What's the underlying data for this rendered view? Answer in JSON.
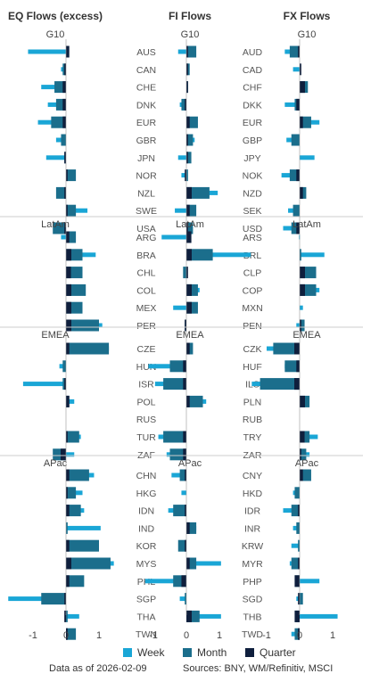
{
  "colors": {
    "week": "#1AA6D6",
    "month": "#1B6E8C",
    "quarter": "#0F1F3D",
    "rule": "#cccccc",
    "axis": "#333333"
  },
  "footer": {
    "date": "Data as of 2026-02-09",
    "sources": "Sources:  BNY, WM/Refinitiv, MSCI"
  },
  "legend": [
    {
      "key": "week",
      "label": "Week"
    },
    {
      "key": "month",
      "label": "Month"
    },
    {
      "key": "quarter",
      "label": "Quarter"
    }
  ],
  "chart_data": {
    "type": "bar",
    "orientation": "horizontal",
    "xlim": [
      -1.5,
      1.5
    ],
    "x_ticks": [
      -1,
      0,
      1
    ],
    "x_tick_labels": [
      "-1",
      "0",
      "1"
    ],
    "series_order": [
      "quarter",
      "month",
      "week"
    ],
    "panels": [
      {
        "title": "EQ Flows (excess)",
        "labels_key": "eq_labels",
        "values_key": "eq"
      },
      {
        "title": "FI Flows",
        "labels_key": "fi_labels",
        "values_key": "fi"
      },
      {
        "title": "FX Flows",
        "labels_key": "fx_labels",
        "values_key": "fx"
      }
    ],
    "regions": [
      {
        "name": "G10",
        "eq_labels": [
          "AUS",
          "CAN",
          "CHE",
          "DNK",
          "EUR",
          "GBR",
          "JPN",
          "NOR",
          "NZL",
          "SWE",
          "USA"
        ],
        "fi_labels": [
          "AUS",
          "CAN",
          "CHE",
          "DNK",
          "EUR",
          "GBR",
          "JPN",
          "NOR",
          "NZL",
          "SWE",
          "USA"
        ],
        "fx_labels": [
          "AUD",
          "CAD",
          "CHF",
          "DKK",
          "EUR",
          "GBP",
          "JPY",
          "NOK",
          "NZD",
          "SEK",
          "USD"
        ],
        "eq": {
          "quarter": [
            0.1,
            -0.05,
            -0.1,
            -0.1,
            -0.1,
            0,
            -0.05,
            0.05,
            -0.05,
            0.05,
            -0.05
          ],
          "month": [
            0.05,
            -0.1,
            -0.35,
            -0.3,
            -0.45,
            -0.15,
            -0.05,
            0.3,
            -0.3,
            0.3,
            -0.4
          ],
          "week": [
            -1.15,
            -0.15,
            -0.75,
            -0.55,
            -0.85,
            -0.3,
            -0.6,
            0.05,
            0.0,
            0.65,
            -0.2
          ]
        },
        "fi": {
          "quarter": [
            0.05,
            0.05,
            0.05,
            -0.05,
            0.1,
            0.05,
            0.05,
            -0.05,
            0.35,
            0.1,
            0.05
          ],
          "month": [
            0.3,
            0.1,
            0.05,
            -0.15,
            0.35,
            0.2,
            0.15,
            0.05,
            0.7,
            0.3,
            0.2
          ],
          "week": [
            -0.25,
            0.05,
            0.05,
            -0.2,
            0.15,
            0.25,
            -0.25,
            -0.15,
            0.95,
            -0.35,
            0.1
          ]
        },
        "fx": {
          "quarter": [
            -0.05,
            0.05,
            0.3,
            -0.1,
            0.1,
            0.0,
            0.0,
            -0.1,
            0.1,
            0.0,
            -0.1
          ],
          "month": [
            -0.3,
            0.0,
            0.25,
            -0.15,
            0.35,
            -0.25,
            0.0,
            -0.3,
            0.2,
            -0.2,
            -0.25
          ],
          "week": [
            -0.45,
            -0.2,
            0.1,
            -0.45,
            0.6,
            -0.4,
            0.45,
            -0.55,
            0.1,
            -0.35,
            -0.5
          ]
        }
      },
      {
        "name": "LatAm",
        "eq_labels": [
          "ARG",
          "BRA",
          "CHL",
          "COL",
          "MEX",
          "PER"
        ],
        "fi_labels": [
          "ARG",
          "BRA",
          "CHL",
          "COL",
          "MEX",
          "PER"
        ],
        "fx_labels": [
          "ARS",
          "BRL",
          "CLP",
          "COP",
          "MXN",
          "PEN"
        ],
        "eq": {
          "quarter": [
            0.1,
            0.2,
            0.15,
            0.3,
            0.2,
            0.6
          ],
          "month": [
            0.3,
            0.5,
            0.5,
            0.6,
            0.5,
            1.0
          ],
          "week": [
            -0.15,
            0.9,
            0.45,
            0.2,
            0.45,
            1.1
          ]
        },
        "fi": {
          "quarter": [
            0.15,
            0.3,
            0.05,
            0.2,
            0.35,
            -0.05
          ],
          "month": [
            0.15,
            0.8,
            -0.1,
            0.35,
            0.35,
            -0.05
          ],
          "week": [
            -0.75,
            1.95,
            0.0,
            0.4,
            -0.4,
            -0.05
          ]
        },
        "fx": {
          "quarter": [
            0.0,
            0.0,
            0.2,
            0.2,
            0.0,
            0.05
          ],
          "month": [
            0.0,
            0.05,
            0.5,
            0.5,
            0.0,
            0.15
          ],
          "week": [
            -0.02,
            0.75,
            0.4,
            0.6,
            0.1,
            -0.1
          ]
        }
      },
      {
        "name": "EMEA",
        "eq_labels": [
          "CZE",
          "HUN",
          "ISR",
          "POL",
          "RUS",
          "TUR",
          "ZAF"
        ],
        "fi_labels": [
          "CZE",
          "HUN",
          "ISR",
          "POL",
          "RUS",
          "TUR",
          "ZAF"
        ],
        "fx_labels": [
          "CZK",
          "HUF",
          "ILS",
          "PLN",
          "RUB",
          "TRY",
          "ZAR"
        ],
        "eq": {
          "quarter": [
            0.1,
            0.0,
            -0.05,
            0.1,
            0,
            0.05,
            -0.2
          ],
          "month": [
            1.3,
            -0.1,
            -0.1,
            0.1,
            0,
            0.4,
            -0.4
          ],
          "week": [
            1.3,
            -0.2,
            -1.3,
            0.25,
            0,
            0.45,
            0.25
          ]
        },
        "fi": {
          "quarter": [
            0.1,
            -0.1,
            -0.1,
            0.1,
            0,
            -0.1,
            -0.1
          ],
          "month": [
            0.2,
            -0.5,
            -0.7,
            0.5,
            0,
            -0.7,
            -0.5
          ],
          "week": [
            0.1,
            -1.15,
            -0.95,
            0.6,
            0,
            -0.85,
            -0.6
          ]
        },
        "fx": {
          "quarter": [
            -0.2,
            -0.1,
            -0.3,
            0.2,
            0,
            0.15,
            0.05
          ],
          "month": [
            -0.8,
            -0.45,
            -1.2,
            0.3,
            0,
            0.3,
            0.2
          ],
          "week": [
            -1.0,
            -0.45,
            -1.45,
            0.1,
            0,
            0.55,
            0.3
          ]
        }
      },
      {
        "name": "APac",
        "eq_labels": [
          "CHN",
          "HKG",
          "IDN",
          "IND",
          "KOR",
          "MYS",
          "PHL",
          "SGP",
          "THA",
          "TWN"
        ],
        "fi_labels": [
          "CHN",
          "HKG",
          "IDN",
          "IND",
          "KOR",
          "MYS",
          "PHL",
          "SGP",
          "THA",
          "TWN"
        ],
        "fx_labels": [
          "CNY",
          "HKD",
          "IDR",
          "INR",
          "KRW",
          "MYR",
          "PHP",
          "SGD",
          "THB",
          "TWD"
        ],
        "eq": {
          "quarter": [
            0.1,
            0.05,
            0.1,
            0,
            0.1,
            0.3,
            0.1,
            -0.05,
            -0.05,
            0.05
          ],
          "month": [
            0.7,
            0.3,
            0.45,
            0.05,
            1.0,
            1.35,
            0.55,
            -0.75,
            0.05,
            0.3
          ],
          "week": [
            0.85,
            0.5,
            0.55,
            1.05,
            0.9,
            1.45,
            0.2,
            -1.75,
            0.4,
            0.2
          ]
        },
        "fi": {
          "quarter": [
            -0.05,
            0.0,
            -0.05,
            0.1,
            -0.05,
            0.1,
            -0.15,
            0.0,
            0.2,
            0.0
          ],
          "month": [
            -0.2,
            0.0,
            -0.4,
            0.3,
            -0.25,
            0.3,
            -0.4,
            -0.05,
            0.4,
            0.0
          ],
          "week": [
            -0.45,
            -0.15,
            -0.55,
            0.3,
            -0.2,
            1.05,
            -1.25,
            -0.2,
            1.05,
            0.0
          ]
        },
        "fx": {
          "quarter": [
            0.1,
            0.0,
            -0.05,
            0.0,
            0.0,
            -0.05,
            -0.15,
            -0.05,
            -0.15,
            -0.05
          ],
          "month": [
            0.35,
            -0.15,
            -0.25,
            -0.1,
            -0.05,
            -0.25,
            -0.15,
            0.1,
            -0.15,
            -0.15
          ],
          "week": [
            0.2,
            -0.2,
            -0.5,
            -0.2,
            -0.25,
            -0.3,
            0.6,
            -0.1,
            1.15,
            -0.25
          ]
        }
      }
    ]
  }
}
